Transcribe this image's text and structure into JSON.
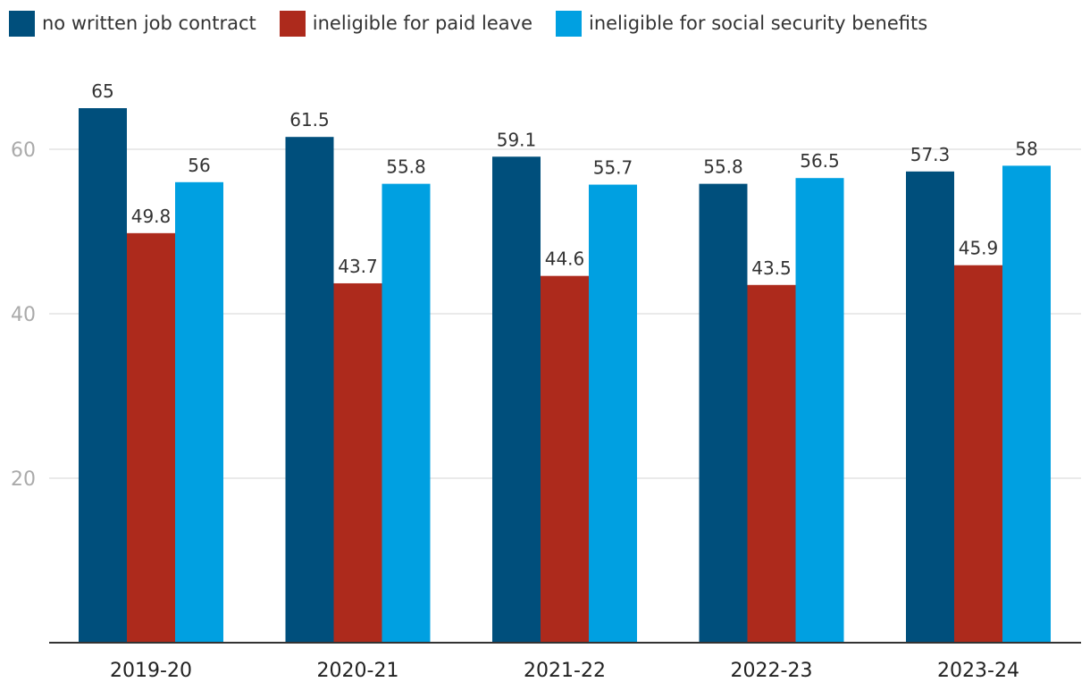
{
  "chart_data": {
    "type": "bar",
    "title": "",
    "xlabel": "",
    "ylabel": "",
    "categories": [
      "2019-20",
      "2020-21",
      "2021-22",
      "2022-23",
      "2023-24"
    ],
    "series": [
      {
        "name": "no written job contract",
        "color": "#004f7c",
        "values": [
          65,
          61.5,
          59.1,
          55.8,
          57.3
        ]
      },
      {
        "name": "ineligible for paid leave",
        "color": "#ad2a1c",
        "values": [
          49.8,
          43.7,
          44.6,
          43.5,
          45.9
        ]
      },
      {
        "name": "ineligible for social security benefits",
        "color": "#00a0e1",
        "values": [
          56,
          55.8,
          55.7,
          56.5,
          58
        ]
      }
    ],
    "yticks": [
      20,
      40,
      60
    ],
    "ylim": [
      0,
      69
    ],
    "grid": true,
    "legend_position": "top-left"
  }
}
